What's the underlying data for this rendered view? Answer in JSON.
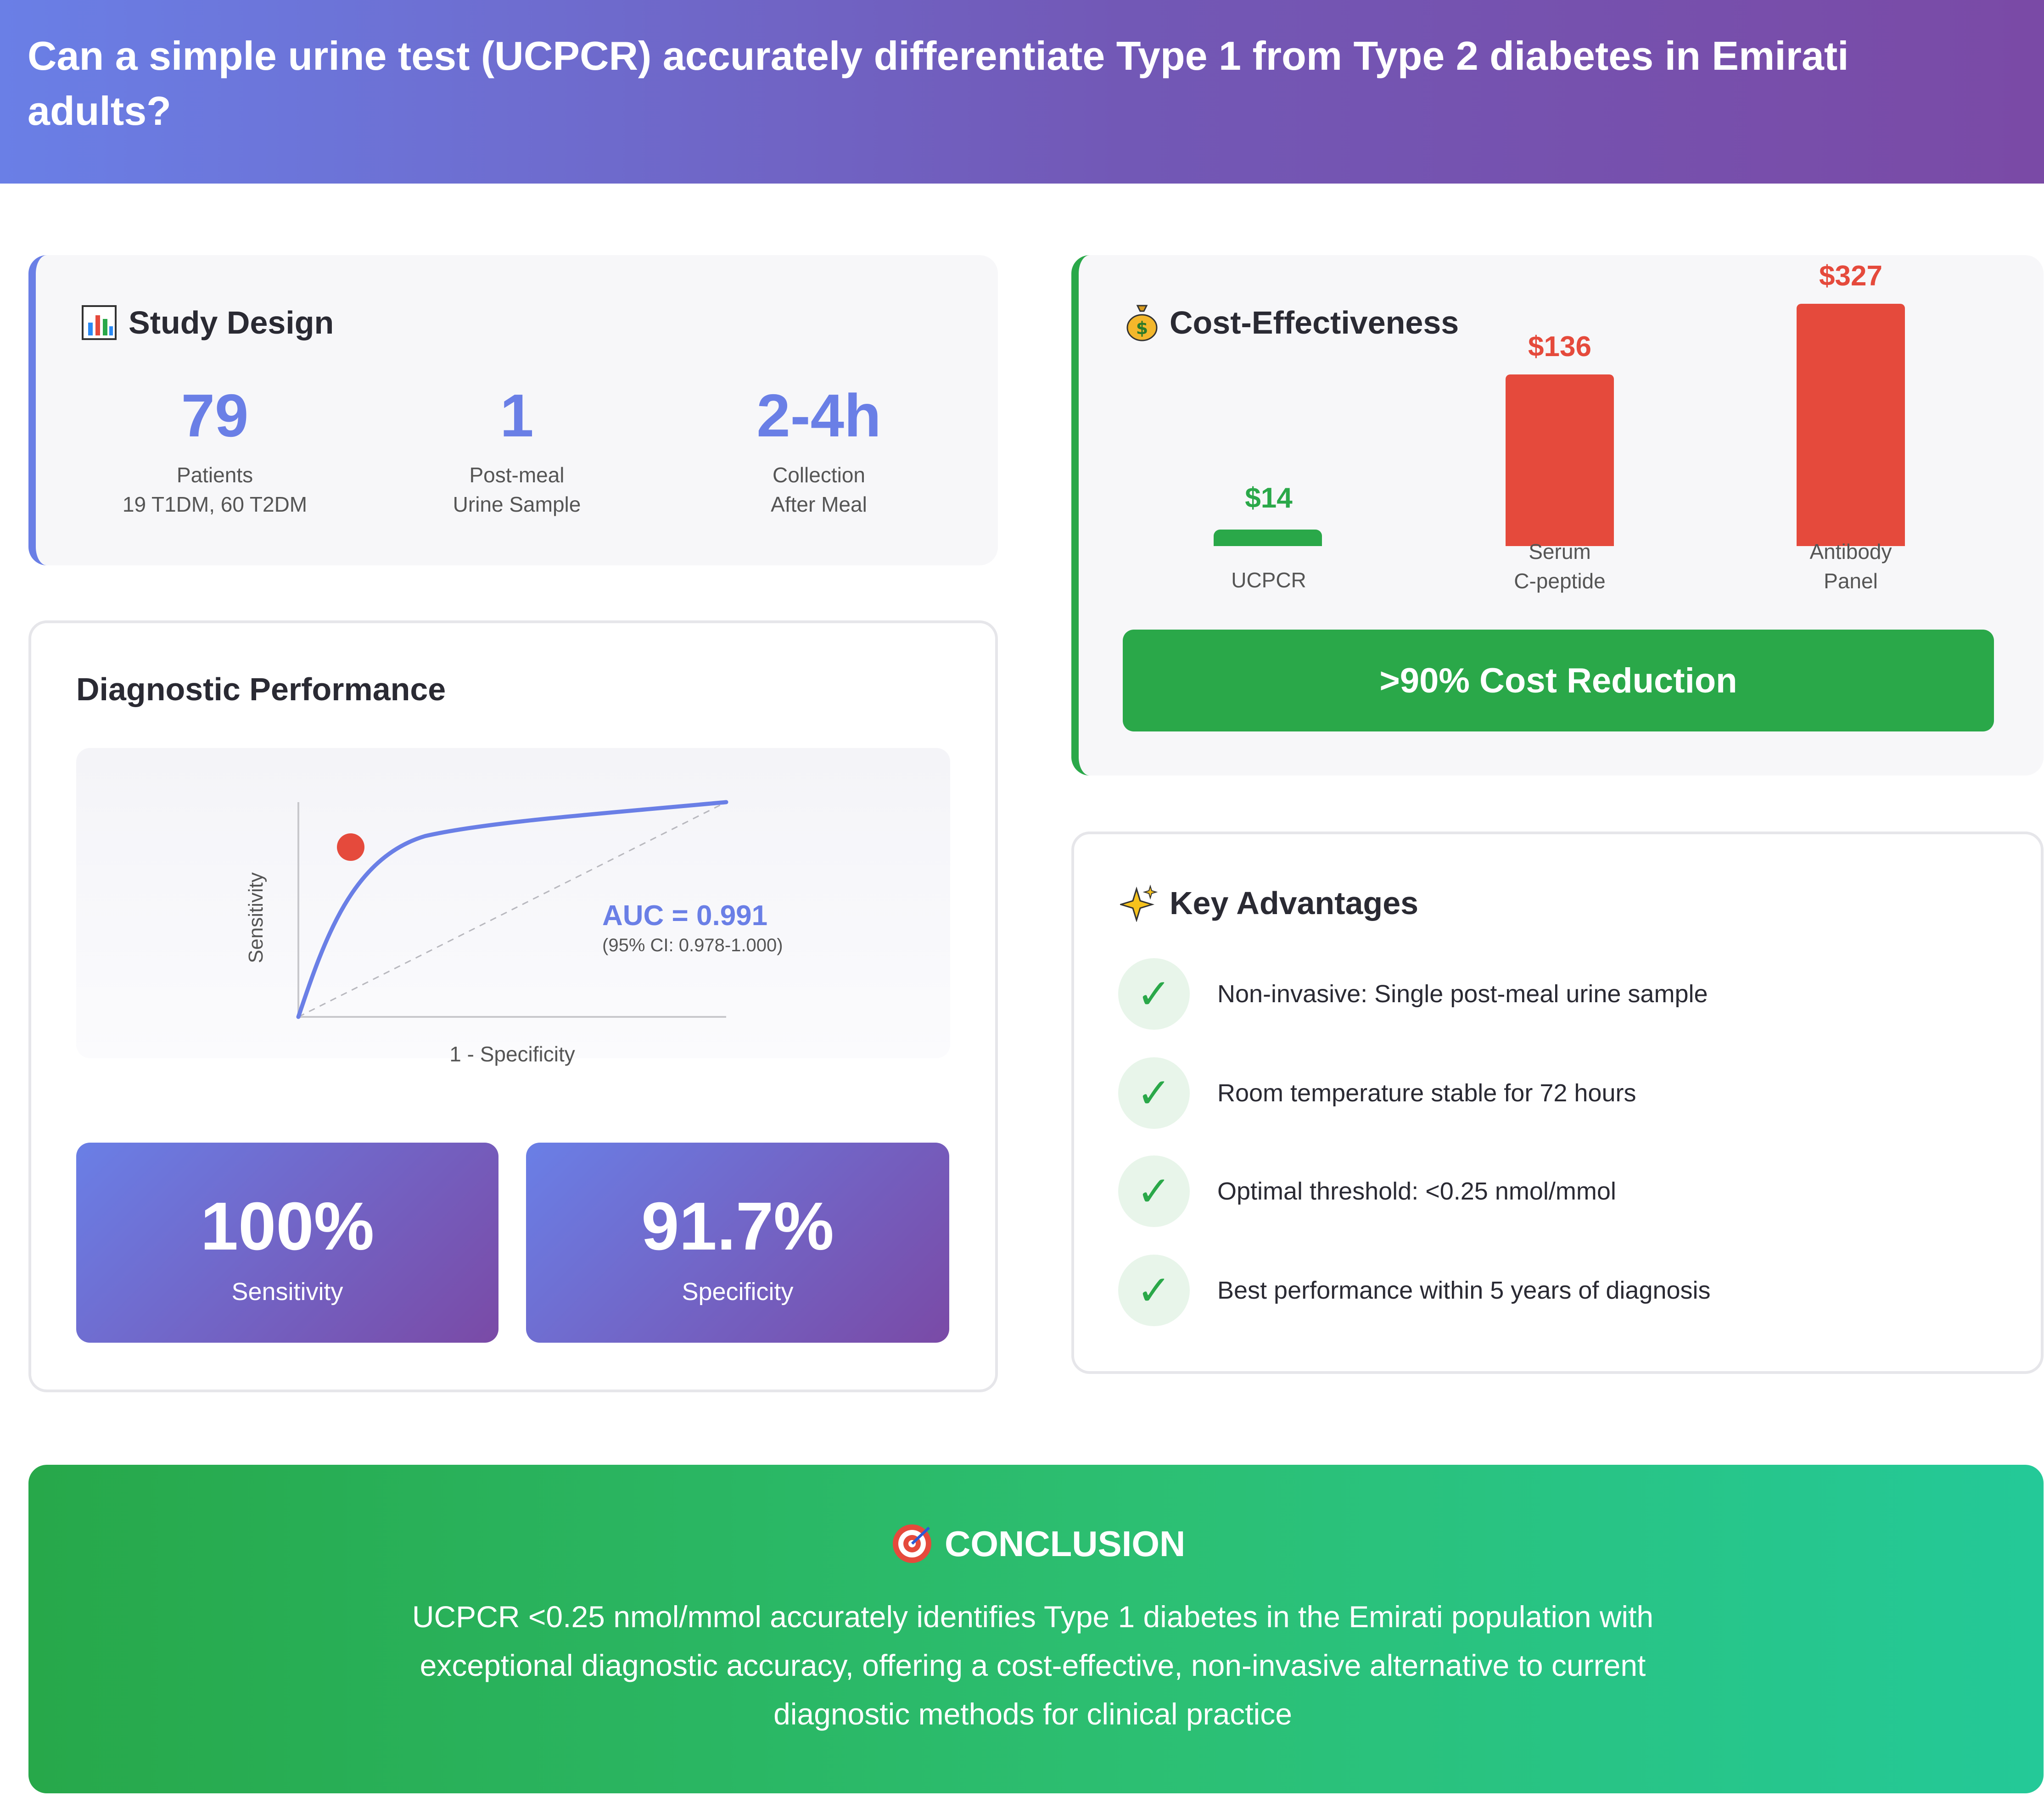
{
  "header": {
    "title": "Can a simple urine test (UCPCR) accurately differentiate Type 1 from Type 2 diabetes in Emirati adults?"
  },
  "study_design": {
    "title": "Study Design",
    "icon": "bar-chart-icon",
    "stats": [
      {
        "value": "79",
        "label_line1": "Patients",
        "label_line2": "19 T1DM, 60 T2DM"
      },
      {
        "value": "1",
        "label_line1": "Post-meal",
        "label_line2": "Urine Sample"
      },
      {
        "value": "2-4h",
        "label_line1": "Collection",
        "label_line2": "After Meal"
      }
    ]
  },
  "cost": {
    "title": "Cost-Effectiveness",
    "icon": "money-bag-icon",
    "banner": ">90% Cost Reduction",
    "items": [
      {
        "price": "$14",
        "label_line1": "UCPCR",
        "label_line2": "",
        "value": 14,
        "color": "#2aa849"
      },
      {
        "price": "$136",
        "label_line1": "Serum",
        "label_line2": "C-peptide",
        "value": 136,
        "color": "#e54a3c"
      },
      {
        "price": "$327",
        "label_line1": "Antibody",
        "label_line2": "Panel",
        "value": 327,
        "color": "#e54a3c"
      }
    ]
  },
  "diagnostic": {
    "title": "Diagnostic Performance",
    "roc": {
      "y_label": "Sensitivity",
      "x_label": "1 - Specificity",
      "auc": "AUC = 0.991",
      "ci": "(95% CI: 0.978-1.000)",
      "curve_color": "#6a7fe6",
      "point_color": "#e54a3c"
    },
    "metrics": [
      {
        "value": "100%",
        "label": "Sensitivity"
      },
      {
        "value": "91.7%",
        "label": "Specificity"
      }
    ]
  },
  "advantages": {
    "title": "Key Advantages",
    "icon": "sparkles-icon",
    "items": [
      "Non-invasive: Single post-meal urine sample",
      "Room temperature stable for 72 hours",
      "Optimal threshold: <0.25 nmol/mmol",
      "Best performance within 5 years of diagnosis"
    ]
  },
  "conclusion": {
    "title": "CONCLUSION",
    "icon": "target-icon",
    "text": "UCPCR <0.25 nmol/mmol accurately identifies Type 1 diabetes in the Emirati population with exceptional diagnostic accuracy, offering a cost-effective, non-invasive alternative to current diagnostic methods for clinical practice"
  },
  "colors": {
    "accent": "#6a7fe6",
    "green": "#2aa849",
    "red": "#e54a3c"
  }
}
